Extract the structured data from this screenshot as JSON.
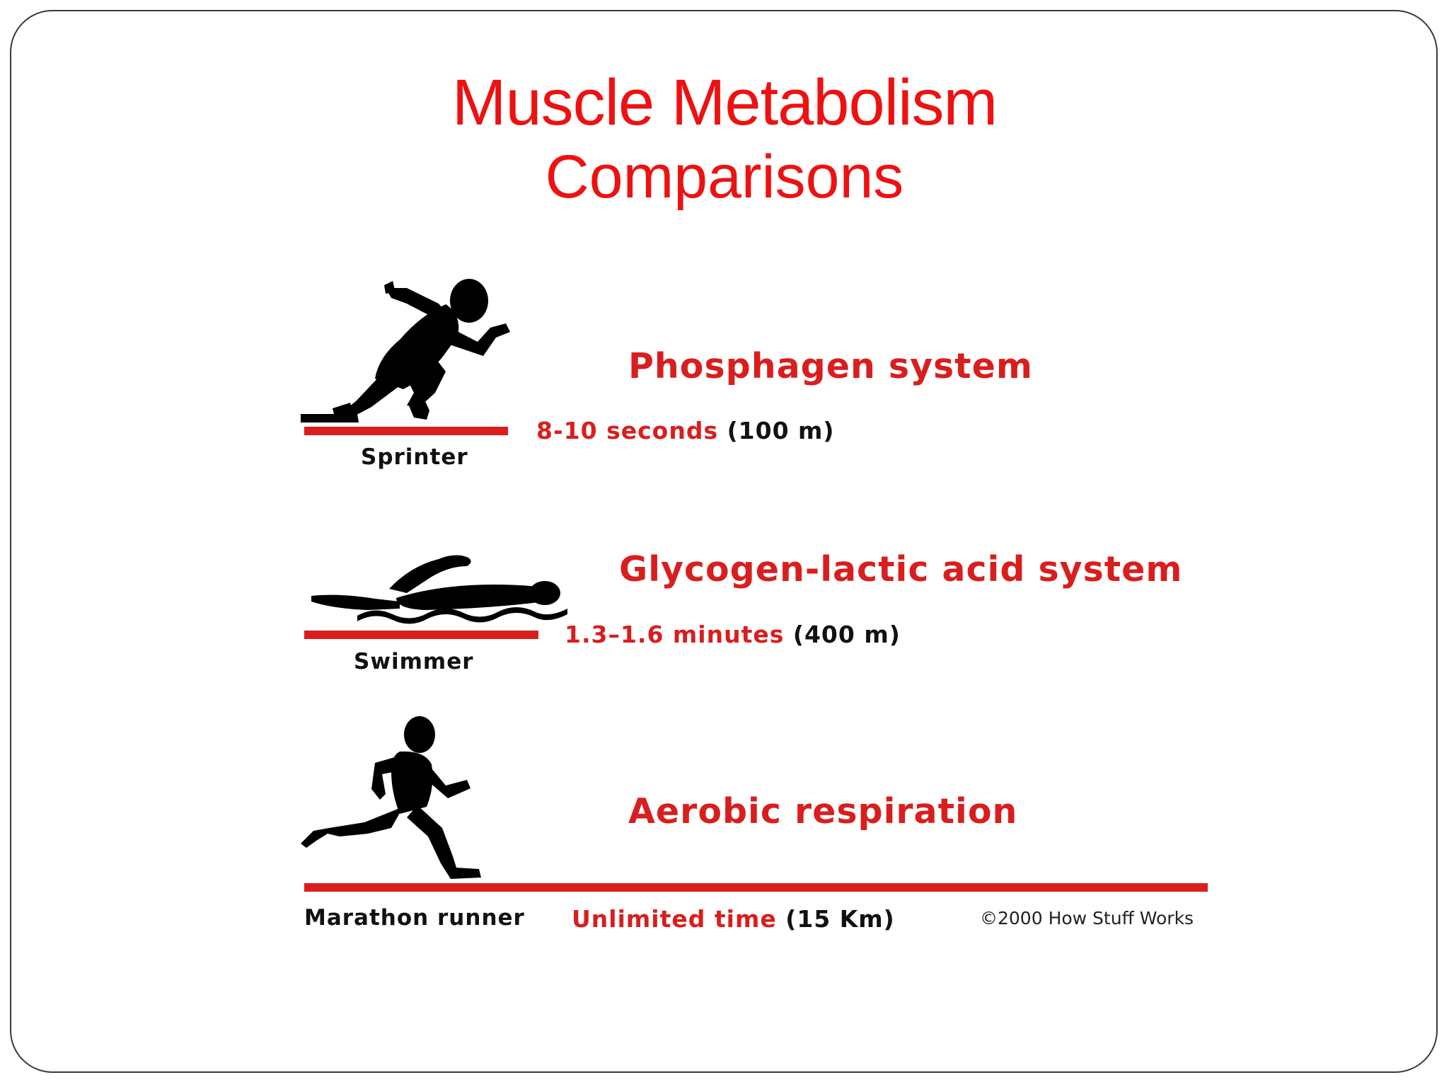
{
  "slide": {
    "title": "Muscle Metabolism",
    "subtitle": "Comparisons"
  },
  "figure": {
    "rows": [
      {
        "system": "Phosphagen system",
        "time": "8-10 seconds",
        "distance": "(100 m)",
        "athlete": "Sprinter",
        "icon": "sprinter-icon"
      },
      {
        "system": "Glycogen-lactic acid system",
        "time": "1.3–1.6 minutes",
        "distance": "(400 m)",
        "athlete": "Swimmer",
        "icon": "swimmer-icon"
      },
      {
        "system": "Aerobic respiration",
        "time": "Unlimited time",
        "distance": "(15 Km)",
        "athlete": "Marathon runner",
        "icon": "runner-icon"
      }
    ],
    "copyright": "©2000 How Stuff Works",
    "colors": {
      "accent": "#d91e1e",
      "title": "#ee1111",
      "silhouette": "#000000"
    }
  }
}
